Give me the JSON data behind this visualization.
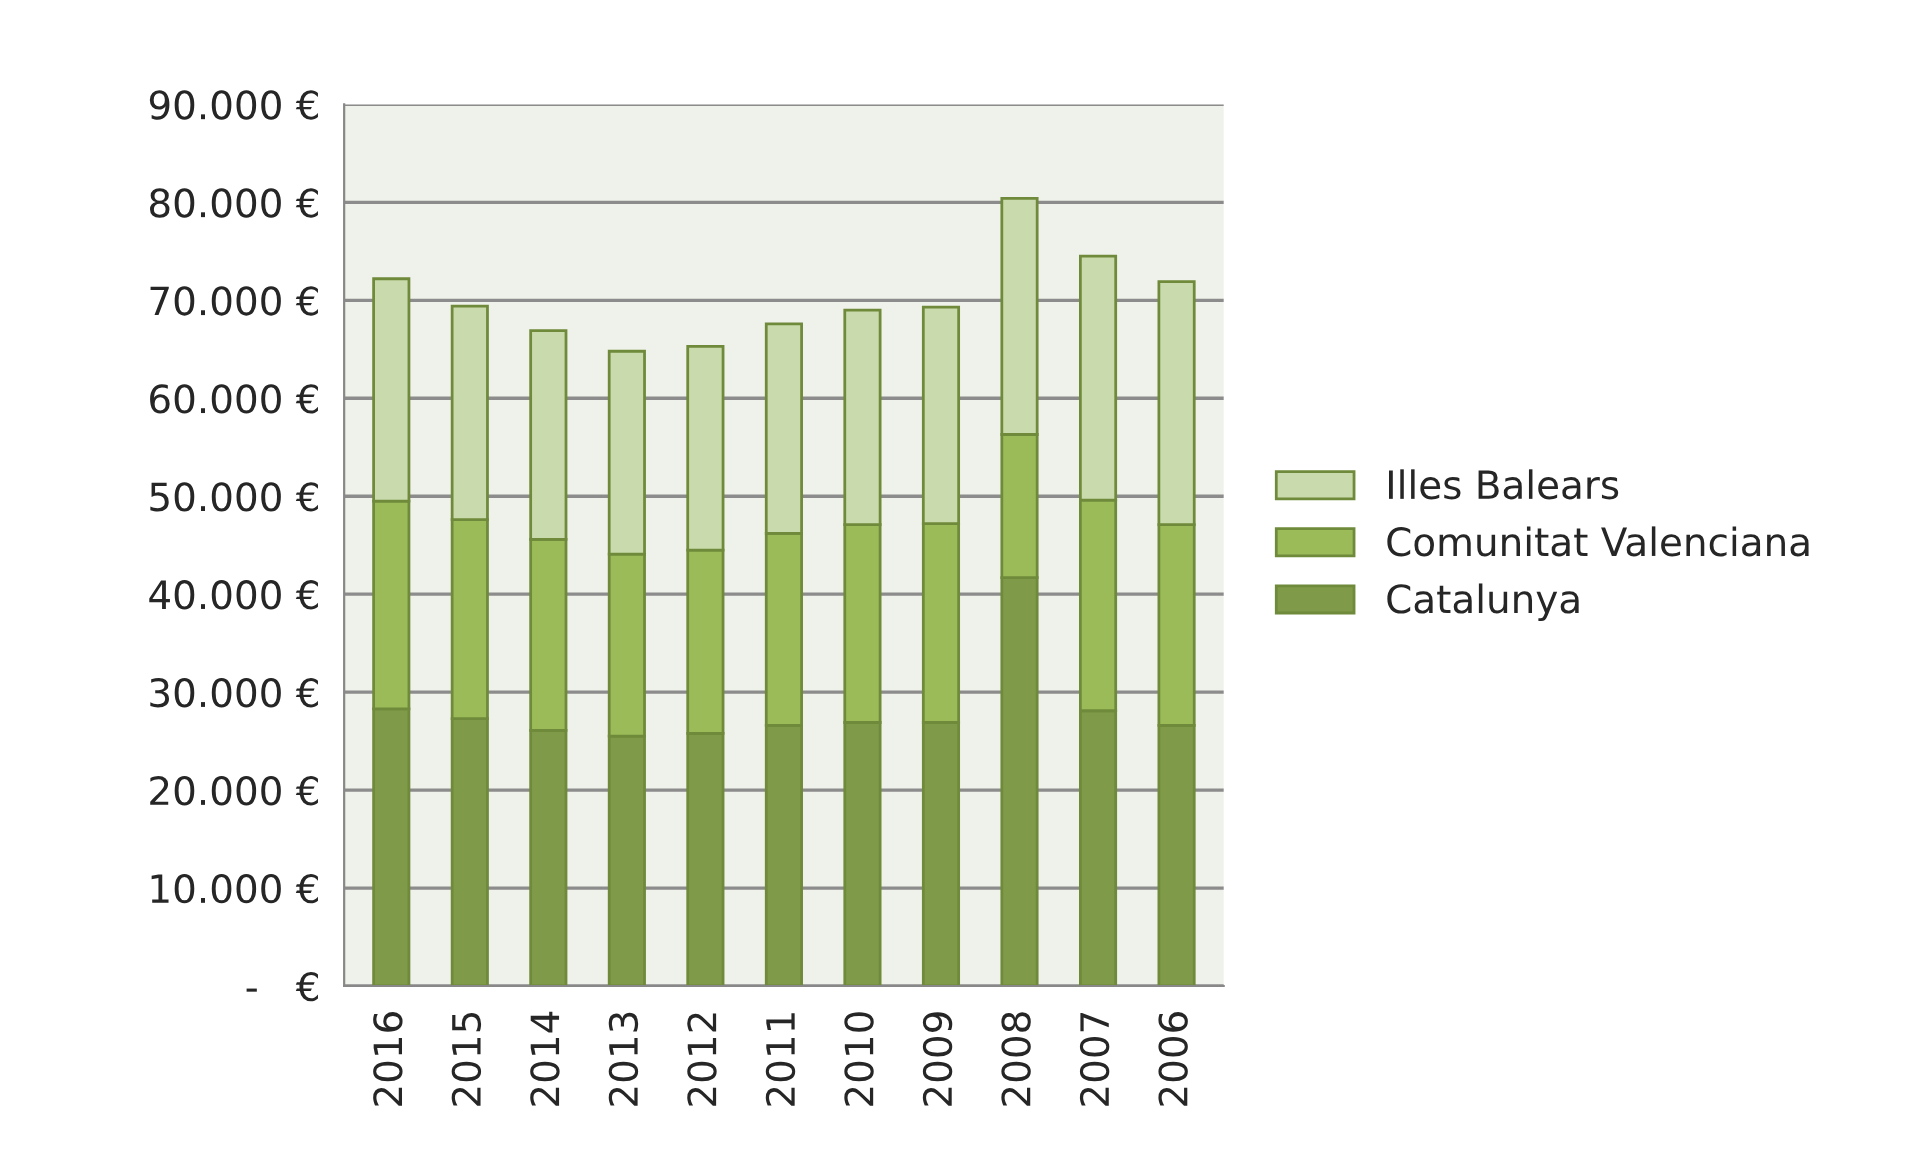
{
  "chart_data": {
    "type": "bar",
    "stacked": true,
    "categories": [
      "2016",
      "2015",
      "2014",
      "2013",
      "2012",
      "2011",
      "2010",
      "2009",
      "2008",
      "2007",
      "2006"
    ],
    "series": [
      {
        "name": "Catalunya",
        "color": "#7f9a48",
        "values": [
          28300,
          27300,
          26100,
          25500,
          25800,
          26600,
          26900,
          26900,
          41700,
          28100,
          26600
        ]
      },
      {
        "name": "Comunitat Valenciana",
        "color": "#9bbb59",
        "values": [
          21200,
          20300,
          19500,
          18600,
          18700,
          19600,
          20200,
          20300,
          14600,
          21500,
          20500
        ]
      },
      {
        "name": "Illes Balears",
        "color": "#c9dbad",
        "values": [
          22700,
          21800,
          21300,
          20700,
          20800,
          21400,
          21900,
          22100,
          24100,
          24900,
          24800
        ]
      }
    ],
    "ylim": [
      0,
      90000
    ],
    "yticks": [
      {
        "value": 0,
        "label": "-   €"
      },
      {
        "value": 10000,
        "label": "10.000 €"
      },
      {
        "value": 20000,
        "label": "20.000 €"
      },
      {
        "value": 30000,
        "label": "30.000 €"
      },
      {
        "value": 40000,
        "label": "40.000 €"
      },
      {
        "value": 50000,
        "label": "50.000 €"
      },
      {
        "value": 60000,
        "label": "60.000 €"
      },
      {
        "value": 70000,
        "label": "70.000 €"
      },
      {
        "value": 80000,
        "label": "80.000 €"
      },
      {
        "value": 90000,
        "label": "90.000 €"
      }
    ],
    "grid": "y",
    "legend": "right"
  }
}
